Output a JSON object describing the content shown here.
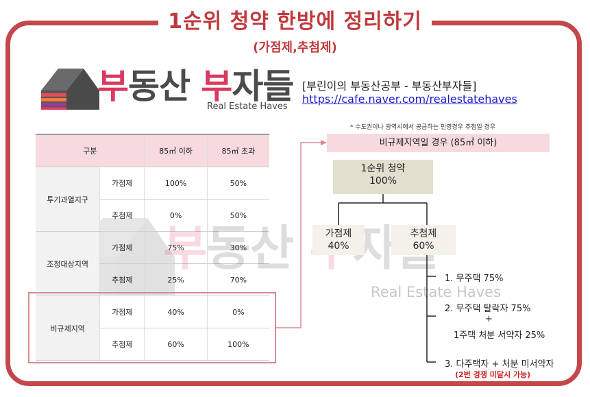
{
  "title": "1순위 청약 한방에 정리하기",
  "subtitle": "(가점제,추첨제)",
  "logo": {
    "text_a": "부",
    "text_b": "동산 ",
    "text_c": "부",
    "text_d": "자들",
    "sub": "Real Estate Haves"
  },
  "cafe": {
    "name": "[부린이의 부동산공부 - 부동산부자들]",
    "url": "https://cafe.naver.com/realestatehaves"
  },
  "table": {
    "headers": [
      "구분",
      "85㎡ 이하",
      "85㎡ 초과"
    ],
    "rows": [
      {
        "region": "투기과열지구",
        "items": [
          {
            "type": "가점제",
            "le85": "100%",
            "gt85": "50%"
          },
          {
            "type": "추첨제",
            "le85": "0%",
            "gt85": "50%"
          }
        ]
      },
      {
        "region": "조정대상지역",
        "items": [
          {
            "type": "가점제",
            "le85": "75%",
            "gt85": "30%"
          },
          {
            "type": "추첨제",
            "le85": "25%",
            "gt85": "70%"
          }
        ]
      },
      {
        "region": "비규제지역",
        "items": [
          {
            "type": "가점제",
            "le85": "40%",
            "gt85": "0%"
          },
          {
            "type": "추첨제",
            "le85": "60%",
            "gt85": "100%"
          }
        ]
      }
    ]
  },
  "note": "* 수도권이나 광역시에서 공급하는 민영경우 추첨일 경우",
  "band": "비규제지역일 경우 (85㎡ 이하)",
  "tree": {
    "root": {
      "label": "1순위 청약",
      "value": "100%"
    },
    "left": {
      "label": "가점제",
      "value": "40%"
    },
    "right": {
      "label": "추첨제",
      "value": "60%"
    },
    "items": [
      "1. 무주택 75%",
      "2. 무주택 탈락자 75%",
      "+",
      "1주택 처분 서약자 25%",
      "3. 다주택자 + 처분 미서약자"
    ],
    "red_note": "(2번 경쟁 미달시 가능)"
  },
  "colors": {
    "accent": "#c3474b",
    "pink": "#f6dadd",
    "root_bg": "#e3dfcf",
    "logo_pink": "#d9395f"
  }
}
